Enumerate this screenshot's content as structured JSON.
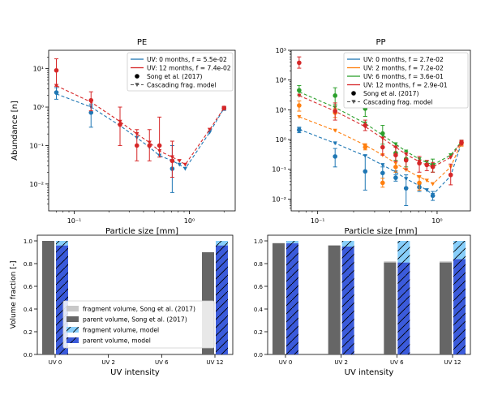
{
  "colors": {
    "uv0": "#1f77b4",
    "uv2": "#ff7f0e",
    "uv6": "#2ca02c",
    "uv12": "#d62728",
    "model": "#555555",
    "song_parent": "#666666",
    "song_fragment": "#c8c8c8",
    "model_parent": "#3b5bdb",
    "model_fragment": "#87cefa"
  },
  "chart_data": [
    {
      "id": "pe-abundance",
      "type": "scatter",
      "title": "PE",
      "xlabel": "Particle size [mm]",
      "ylabel": "Abundance [n]",
      "xscale": "log",
      "yscale": "log",
      "xlim": [
        0.06,
        2.5
      ],
      "ylim": [
        0.002,
        30
      ],
      "x_ticks": [
        0.1,
        1
      ],
      "x_tick_labels": [
        "10⁻¹",
        "10⁰"
      ],
      "y_ticks": [
        0.01,
        0.1,
        1,
        10
      ],
      "y_tick_labels": [
        "10⁻²",
        "10⁻¹",
        "10⁰",
        "10¹"
      ],
      "legend_position": "top-right",
      "legend": [
        {
          "kind": "line",
          "color_key": "uv0",
          "label": "UV: 0 months, f = 5.5e-02"
        },
        {
          "kind": "line",
          "color_key": "uv12",
          "label": "UV: 12 months, f = 7.4e-02"
        },
        {
          "kind": "dot",
          "color_key": "black",
          "label": "Song et al. (2017)"
        },
        {
          "kind": "model",
          "color_key": "model",
          "label": "Cascading frag. model"
        }
      ],
      "series": [
        {
          "name": "UV: 0 months, f = 5.5e-02",
          "color_key": "uv0",
          "obs": [
            {
              "x": 0.07,
              "y": 2.4,
              "lo": 1.6,
              "hi": 3.2
            },
            {
              "x": 0.14,
              "y": 0.72,
              "lo": 0.3,
              "hi": 1.2
            },
            {
              "x": 0.71,
              "y": 0.025,
              "lo": 0.006,
              "hi": 0.1
            },
            {
              "x": 2.0,
              "y": 0.92,
              "lo": 0.82,
              "hi": 1.02
            }
          ],
          "model_x": [
            0.07,
            0.14,
            0.25,
            0.35,
            0.45,
            0.55,
            0.71,
            0.82,
            0.92,
            1.5,
            2.0
          ],
          "model_y": [
            2.2,
            1.0,
            0.33,
            0.16,
            0.09,
            0.055,
            0.04,
            0.032,
            0.025,
            0.22,
            0.93
          ]
        },
        {
          "name": "UV: 12 months, f = 7.4e-02",
          "color_key": "uv12",
          "obs": [
            {
              "x": 0.07,
              "y": 9.0,
              "lo": 3.5,
              "hi": 18.0
            },
            {
              "x": 0.14,
              "y": 1.5,
              "lo": 0.8,
              "hi": 2.5
            },
            {
              "x": 0.25,
              "y": 0.35,
              "lo": 0.1,
              "hi": 1.0
            },
            {
              "x": 0.35,
              "y": 0.1,
              "lo": 0.04,
              "hi": 0.26
            },
            {
              "x": 0.45,
              "y": 0.1,
              "lo": 0.04,
              "hi": 0.26
            },
            {
              "x": 0.55,
              "y": 0.1,
              "lo": 0.05,
              "hi": 0.55
            },
            {
              "x": 0.71,
              "y": 0.04,
              "lo": 0.015,
              "hi": 0.13
            },
            {
              "x": 2.0,
              "y": 0.95,
              "lo": 0.85,
              "hi": 1.05
            }
          ],
          "model_x": [
            0.07,
            0.14,
            0.25,
            0.35,
            0.45,
            0.55,
            0.71,
            0.82,
            0.92,
            1.5,
            2.0
          ],
          "model_y": [
            3.6,
            1.35,
            0.42,
            0.2,
            0.12,
            0.072,
            0.05,
            0.04,
            0.032,
            0.26,
            0.95
          ]
        }
      ]
    },
    {
      "id": "pp-abundance",
      "type": "scatter",
      "title": "PP",
      "xlabel": "Particle size [mm]",
      "ylabel": "",
      "xscale": "log",
      "yscale": "log",
      "xlim": [
        0.06,
        1.9
      ],
      "ylim": [
        0.004,
        1000
      ],
      "x_ticks": [
        0.1,
        1
      ],
      "x_tick_labels": [
        "10⁻¹",
        "10⁰"
      ],
      "y_ticks": [
        0.01,
        0.1,
        1,
        10,
        100,
        1000
      ],
      "y_tick_labels": [
        "10⁻²",
        "10⁻¹",
        "10⁰",
        "10¹",
        "10²",
        "10³"
      ],
      "legend_position": "top-right",
      "legend": [
        {
          "kind": "line",
          "color_key": "uv0",
          "label": "UV: 0 months, f = 2.7e-02"
        },
        {
          "kind": "line",
          "color_key": "uv2",
          "label": "UV: 2 months, f = 7.2e-02"
        },
        {
          "kind": "line",
          "color_key": "uv6",
          "label": "UV: 6 months, f = 3.6e-01"
        },
        {
          "kind": "line",
          "color_key": "uv12",
          "label": "UV: 12 months, f = 2.9e-01"
        },
        {
          "kind": "dot",
          "color_key": "black",
          "label": "Song et al. (2017)"
        },
        {
          "kind": "model",
          "color_key": "model",
          "label": "Cascading frag. model"
        }
      ],
      "series": [
        {
          "name": "UV: 0 months, f = 2.7e-02",
          "color_key": "uv0",
          "obs": [
            {
              "x": 0.07,
              "y": 2.1,
              "lo": 1.7,
              "hi": 2.6
            },
            {
              "x": 0.14,
              "y": 0.27,
              "lo": 0.12,
              "hi": 0.5
            },
            {
              "x": 0.25,
              "y": 0.085,
              "lo": 0.02,
              "hi": 0.3
            },
            {
              "x": 0.35,
              "y": 0.075,
              "lo": 0.035,
              "hi": 0.12
            },
            {
              "x": 0.45,
              "y": 0.052,
              "lo": 0.04,
              "hi": 0.065
            },
            {
              "x": 0.55,
              "y": 0.023,
              "lo": 0.006,
              "hi": 0.065
            },
            {
              "x": 0.71,
              "y": 0.025,
              "lo": 0.018,
              "hi": 0.035
            },
            {
              "x": 0.92,
              "y": 0.013,
              "lo": 0.009,
              "hi": 0.018
            }
          ],
          "model_x": [
            0.07,
            0.14,
            0.25,
            0.35,
            0.45,
            0.55,
            0.71,
            0.82,
            0.92,
            1.3,
            1.6
          ],
          "model_y": [
            2.2,
            0.75,
            0.28,
            0.14,
            0.08,
            0.048,
            0.028,
            0.02,
            0.014,
            0.06,
            0.78
          ]
        },
        {
          "name": "UV: 2 months, f = 7.2e-02",
          "color_key": "uv2",
          "obs": [
            {
              "x": 0.07,
              "y": 14.0,
              "lo": 9.0,
              "hi": 20.0
            },
            {
              "x": 0.14,
              "y": 8.0,
              "lo": 5.5,
              "hi": 11.0
            },
            {
              "x": 0.25,
              "y": 0.55,
              "lo": 0.45,
              "hi": 0.65
            },
            {
              "x": 0.35,
              "y": 0.035,
              "lo": 0.025,
              "hi": 0.05
            },
            {
              "x": 0.45,
              "y": 0.12,
              "lo": 0.08,
              "hi": 0.2
            },
            {
              "x": 0.71,
              "y": 0.035,
              "lo": 0.02,
              "hi": 0.055
            },
            {
              "x": 1.6,
              "y": 0.75,
              "lo": 0.6,
              "hi": 0.9
            }
          ],
          "model_x": [
            0.07,
            0.14,
            0.25,
            0.35,
            0.45,
            0.55,
            0.71,
            0.82,
            0.92,
            1.3,
            1.6
          ],
          "model_y": [
            5.8,
            2.0,
            0.65,
            0.3,
            0.16,
            0.095,
            0.055,
            0.042,
            0.032,
            0.12,
            0.8
          ]
        },
        {
          "name": "UV: 6 months, f = 3.6e-01",
          "color_key": "uv6",
          "obs": [
            {
              "x": 0.07,
              "y": 45.0,
              "lo": 30.0,
              "hi": 65.0
            },
            {
              "x": 0.14,
              "y": 30.0,
              "lo": 15.0,
              "hi": 55.0
            },
            {
              "x": 0.25,
              "y": 11.0,
              "lo": 6.0,
              "hi": 22.0
            },
            {
              "x": 0.35,
              "y": 1.6,
              "lo": 0.7,
              "hi": 3.0
            },
            {
              "x": 0.45,
              "y": 0.35,
              "lo": 0.2,
              "hi": 0.6
            },
            {
              "x": 0.55,
              "y": 0.22,
              "lo": 0.12,
              "hi": 0.4
            },
            {
              "x": 0.92,
              "y": 0.14,
              "lo": 0.08,
              "hi": 0.22
            }
          ],
          "model_x": [
            0.07,
            0.14,
            0.25,
            0.35,
            0.45,
            0.55,
            0.71,
            0.82,
            0.92,
            1.3,
            1.6
          ],
          "model_y": [
            40.0,
            12.0,
            3.5,
            1.4,
            0.7,
            0.4,
            0.22,
            0.17,
            0.14,
            0.3,
            0.85
          ]
        },
        {
          "name": "UV: 12 months, f = 2.9e-01",
          "color_key": "uv12",
          "obs": [
            {
              "x": 0.07,
              "y": 380.0,
              "lo": 250.0,
              "hi": 600.0
            },
            {
              "x": 0.14,
              "y": 9.0,
              "lo": 4.5,
              "hi": 17.0
            },
            {
              "x": 0.25,
              "y": 3.0,
              "lo": 2.0,
              "hi": 4.5
            },
            {
              "x": 0.35,
              "y": 0.55,
              "lo": 0.3,
              "hi": 1.2
            },
            {
              "x": 0.45,
              "y": 0.3,
              "lo": 0.18,
              "hi": 0.55
            },
            {
              "x": 0.55,
              "y": 0.2,
              "lo": 0.1,
              "hi": 0.35
            },
            {
              "x": 0.71,
              "y": 0.16,
              "lo": 0.08,
              "hi": 0.27
            },
            {
              "x": 0.82,
              "y": 0.14,
              "lo": 0.09,
              "hi": 0.2
            },
            {
              "x": 0.92,
              "y": 0.12,
              "lo": 0.08,
              "hi": 0.17
            },
            {
              "x": 1.3,
              "y": 0.065,
              "lo": 0.03,
              "hi": 0.15
            },
            {
              "x": 1.6,
              "y": 0.8,
              "lo": 0.65,
              "hi": 0.95
            }
          ],
          "model_x": [
            0.07,
            0.14,
            0.25,
            0.35,
            0.45,
            0.55,
            0.71,
            0.82,
            0.92,
            1.3,
            1.6
          ],
          "model_y": [
            30.0,
            9.0,
            2.7,
            1.1,
            0.55,
            0.32,
            0.18,
            0.14,
            0.12,
            0.25,
            0.82
          ]
        }
      ]
    },
    {
      "id": "pe-volume",
      "type": "bar",
      "title": "",
      "xlabel": "UV intensity",
      "ylabel": "Volume fraction [-]",
      "categories": [
        "UV 0",
        "UV 2",
        "UV 6",
        "UV 12"
      ],
      "ylim": [
        0,
        1.05
      ],
      "y_ticks": [
        0,
        0.2,
        0.4,
        0.6,
        0.8,
        1.0
      ],
      "y_tick_labels": [
        "0.0",
        "0.2",
        "0.4",
        "0.6",
        "0.8",
        "1.0"
      ],
      "legend_position": "bottom-left",
      "legend": [
        {
          "color_key": "song_fragment",
          "hatch": false,
          "label": "fragment volume, Song et al. (2017)"
        },
        {
          "color_key": "song_parent",
          "hatch": false,
          "label": "parent volume, Song et al. (2017)"
        },
        {
          "color_key": "model_fragment",
          "hatch": true,
          "label": "fragment volume, model"
        },
        {
          "color_key": "model_parent",
          "hatch": true,
          "label": "parent volume, model"
        }
      ],
      "song_parent": [
        1.0,
        null,
        null,
        0.9
      ],
      "song_fragment": [
        0.0,
        null,
        null,
        0.0
      ],
      "model_parent": [
        0.96,
        null,
        null,
        0.96
      ],
      "model_fragment": [
        0.04,
        null,
        null,
        0.04
      ]
    },
    {
      "id": "pp-volume",
      "type": "bar",
      "title": "",
      "xlabel": "UV intensity",
      "ylabel": "",
      "categories": [
        "UV 0",
        "UV 2",
        "UV 6",
        "UV 12"
      ],
      "ylim": [
        0,
        1.05
      ],
      "y_ticks": [
        0,
        0.2,
        0.4,
        0.6,
        0.8,
        1.0
      ],
      "y_tick_labels": [
        "0.0",
        "0.2",
        "0.4",
        "0.6",
        "0.8",
        "1.0"
      ],
      "song_parent": [
        0.98,
        0.96,
        0.81,
        0.81
      ],
      "song_fragment": [
        0.0,
        0.0,
        0.01,
        0.01
      ],
      "model_parent": [
        0.98,
        0.95,
        0.81,
        0.84
      ],
      "model_fragment": [
        0.02,
        0.05,
        0.19,
        0.16
      ]
    }
  ]
}
